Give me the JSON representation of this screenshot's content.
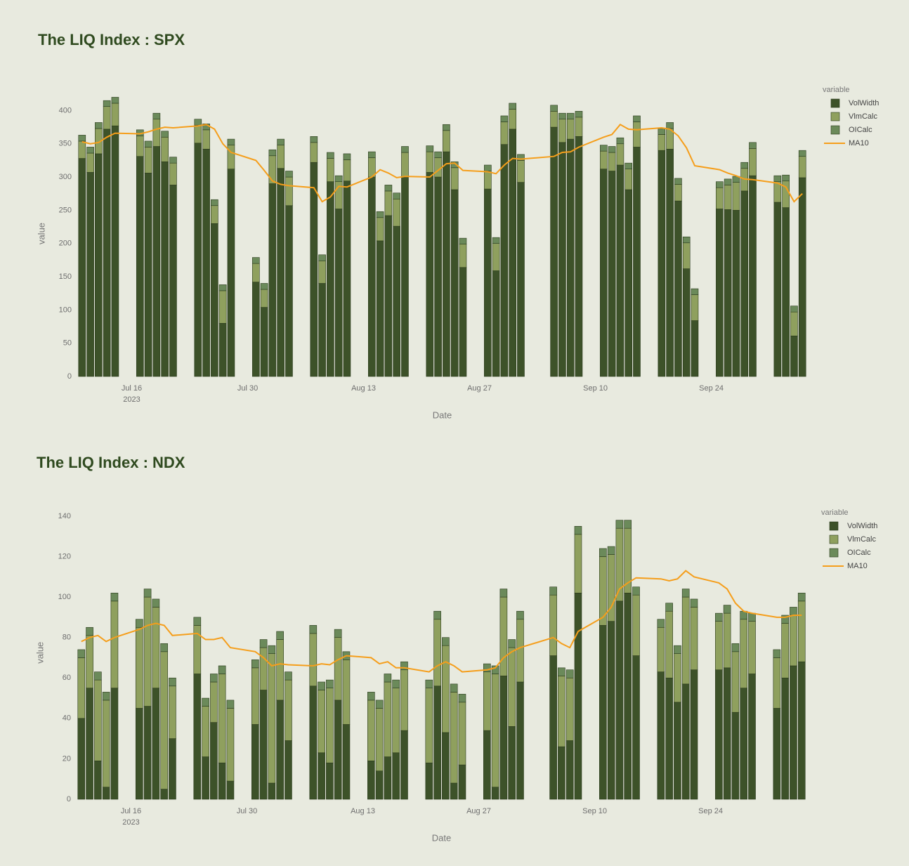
{
  "chart_data": [
    {
      "type": "bar",
      "barmode": "stack",
      "title": "The LIQ Index : SPX",
      "xlabel": "Date",
      "ylabel": "value",
      "legend_title": "variable",
      "x": [
        "2023-07-10",
        "2023-07-11",
        "2023-07-12",
        "2023-07-13",
        "2023-07-14",
        "2023-07-17",
        "2023-07-18",
        "2023-07-19",
        "2023-07-20",
        "2023-07-21",
        "2023-07-24",
        "2023-07-25",
        "2023-07-26",
        "2023-07-27",
        "2023-07-28",
        "2023-07-31",
        "2023-08-01",
        "2023-08-02",
        "2023-08-03",
        "2023-08-04",
        "2023-08-07",
        "2023-08-08",
        "2023-08-09",
        "2023-08-10",
        "2023-08-11",
        "2023-08-14",
        "2023-08-15",
        "2023-08-16",
        "2023-08-17",
        "2023-08-18",
        "2023-08-21",
        "2023-08-22",
        "2023-08-23",
        "2023-08-24",
        "2023-08-25",
        "2023-08-28",
        "2023-08-29",
        "2023-08-30",
        "2023-08-31",
        "2023-09-01",
        "2023-09-05",
        "2023-09-06",
        "2023-09-07",
        "2023-09-08",
        "2023-09-11",
        "2023-09-12",
        "2023-09-13",
        "2023-09-14",
        "2023-09-15",
        "2023-09-18",
        "2023-09-19",
        "2023-09-20",
        "2023-09-21",
        "2023-09-22",
        "2023-09-25",
        "2023-09-26",
        "2023-09-27",
        "2023-09-28",
        "2023-09-29",
        "2023-10-02",
        "2023-10-03",
        "2023-10-04",
        "2023-10-05"
      ],
      "series": [
        {
          "name": "VolWidth",
          "type": "bar",
          "color": "#3d5229",
          "values": [
            328,
            307,
            335,
            372,
            377,
            331,
            306,
            346,
            323,
            288,
            351,
            342,
            230,
            80,
            312,
            142,
            104,
            290,
            313,
            257,
            322,
            140,
            293,
            252,
            294,
            300,
            204,
            242,
            226,
            300,
            307,
            300,
            338,
            281,
            164,
            282,
            159,
            349,
            372,
            292,
            375,
            352,
            357,
            361,
            312,
            309,
            318,
            281,
            345,
            340,
            342,
            264,
            162,
            84,
            252,
            251,
            250,
            279,
            302,
            262,
            254,
            61,
            299
          ]
        },
        {
          "name": "VlmCalc",
          "type": "bar",
          "color": "#8fa05e",
          "values": [
            26,
            29,
            38,
            34,
            34,
            31,
            39,
            41,
            37,
            33,
            27,
            29,
            27,
            49,
            36,
            28,
            27,
            42,
            35,
            43,
            30,
            34,
            35,
            41,
            32,
            29,
            35,
            37,
            41,
            37,
            31,
            29,
            32,
            33,
            35,
            27,
            41,
            34,
            30,
            33,
            24,
            35,
            30,
            29,
            27,
            28,
            32,
            31,
            38,
            24,
            31,
            25,
            39,
            39,
            32,
            37,
            42,
            34,
            41,
            31,
            40,
            36,
            32
          ]
        },
        {
          "name": "OICalc",
          "type": "bar",
          "color": "#6b8a5a",
          "values": [
            9,
            9,
            9,
            9,
            9,
            9,
            9,
            9,
            9,
            9,
            9,
            9,
            9,
            9,
            9,
            9,
            9,
            9,
            9,
            9,
            9,
            9,
            9,
            9,
            9,
            9,
            9,
            9,
            9,
            9,
            9,
            9,
            9,
            9,
            9,
            9,
            9,
            9,
            9,
            9,
            9,
            9,
            9,
            9,
            9,
            9,
            9,
            9,
            9,
            9,
            9,
            9,
            9,
            9,
            9,
            9,
            9,
            9,
            9,
            9,
            9,
            9,
            9
          ]
        },
        {
          "name": "MA10",
          "type": "line",
          "color": "#f59e1b",
          "values": [
            353,
            350,
            352,
            360,
            366,
            365,
            368,
            372,
            375,
            374,
            377,
            379,
            372,
            350,
            337,
            325,
            310,
            294,
            289,
            287,
            284,
            263,
            270,
            286,
            285,
            300,
            311,
            306,
            299,
            301,
            300,
            310,
            320,
            321,
            310,
            308,
            305,
            318,
            328,
            327,
            331,
            337,
            338,
            345,
            360,
            364,
            379,
            372,
            371,
            374,
            372,
            362,
            344,
            317,
            311,
            306,
            302,
            297,
            296,
            291,
            285,
            263,
            275
          ]
        }
      ],
      "xlim": [
        "2023-07-09",
        "2023-10-06"
      ],
      "ylim": [
        0,
        430
      ],
      "xticks": [
        {
          "value": "2023-07-16",
          "label": "Jul 16",
          "sublabel": "2023"
        },
        {
          "value": "2023-07-30",
          "label": "Jul 30"
        },
        {
          "value": "2023-08-13",
          "label": "Aug 13"
        },
        {
          "value": "2023-08-27",
          "label": "Aug 27"
        },
        {
          "value": "2023-09-10",
          "label": "Sep 10"
        },
        {
          "value": "2023-09-24",
          "label": "Sep 24"
        }
      ],
      "yticks": [
        0,
        50,
        100,
        150,
        200,
        250,
        300,
        350,
        400
      ],
      "grid": false
    },
    {
      "type": "bar",
      "barmode": "stack",
      "title": "The LIQ Index : NDX",
      "xlabel": "Date",
      "ylabel": "value",
      "legend_title": "variable",
      "x": [
        "2023-07-10",
        "2023-07-11",
        "2023-07-12",
        "2023-07-13",
        "2023-07-14",
        "2023-07-17",
        "2023-07-18",
        "2023-07-19",
        "2023-07-20",
        "2023-07-21",
        "2023-07-24",
        "2023-07-25",
        "2023-07-26",
        "2023-07-27",
        "2023-07-28",
        "2023-07-31",
        "2023-08-01",
        "2023-08-02",
        "2023-08-03",
        "2023-08-04",
        "2023-08-07",
        "2023-08-08",
        "2023-08-09",
        "2023-08-10",
        "2023-08-11",
        "2023-08-14",
        "2023-08-15",
        "2023-08-16",
        "2023-08-17",
        "2023-08-18",
        "2023-08-21",
        "2023-08-22",
        "2023-08-23",
        "2023-08-24",
        "2023-08-25",
        "2023-08-28",
        "2023-08-29",
        "2023-08-30",
        "2023-08-31",
        "2023-09-01",
        "2023-09-05",
        "2023-09-06",
        "2023-09-07",
        "2023-09-08",
        "2023-09-11",
        "2023-09-12",
        "2023-09-13",
        "2023-09-14",
        "2023-09-15",
        "2023-09-18",
        "2023-09-19",
        "2023-09-20",
        "2023-09-21",
        "2023-09-22",
        "2023-09-25",
        "2023-09-26",
        "2023-09-27",
        "2023-09-28",
        "2023-09-29",
        "2023-10-02",
        "2023-10-03",
        "2023-10-04",
        "2023-10-05"
      ],
      "series": [
        {
          "name": "VolWidth",
          "type": "bar",
          "color": "#3d5229",
          "values": [
            40,
            55,
            19,
            6,
            55,
            45,
            46,
            55,
            5,
            30,
            62,
            21,
            38,
            18,
            9,
            37,
            54,
            8,
            49,
            29,
            56,
            23,
            18,
            49,
            37,
            19,
            14,
            21,
            23,
            34,
            18,
            56,
            33,
            8,
            17,
            34,
            6,
            61,
            36,
            58,
            71,
            26,
            29,
            102,
            86,
            88,
            98,
            102,
            71,
            63,
            60,
            48,
            57,
            64,
            64,
            65,
            43,
            55,
            62,
            45,
            60,
            66,
            68
          ]
        },
        {
          "name": "VlmCalc",
          "type": "bar",
          "color": "#8fa05e",
          "values": [
            30,
            26,
            40,
            43,
            43,
            40,
            54,
            40,
            68,
            26,
            24,
            25,
            20,
            44,
            36,
            28,
            21,
            64,
            30,
            30,
            26,
            31,
            37,
            31,
            32,
            30,
            31,
            37,
            32,
            30,
            37,
            33,
            43,
            45,
            31,
            29,
            56,
            39,
            39,
            31,
            30,
            35,
            31,
            29,
            34,
            33,
            36,
            32,
            30,
            22,
            33,
            24,
            43,
            31,
            24,
            27,
            30,
            34,
            26,
            25,
            27,
            25,
            30
          ]
        },
        {
          "name": "OICalc",
          "type": "bar",
          "color": "#6b8a5a",
          "values": [
            4,
            4,
            4,
            4,
            4,
            4,
            4,
            4,
            4,
            4,
            4,
            4,
            4,
            4,
            4,
            4,
            4,
            4,
            4,
            4,
            4,
            4,
            4,
            4,
            4,
            4,
            4,
            4,
            4,
            4,
            4,
            4,
            4,
            4,
            4,
            4,
            4,
            4,
            4,
            4,
            4,
            4,
            4,
            4,
            4,
            4,
            4,
            4,
            4,
            4,
            4,
            4,
            4,
            4,
            4,
            4,
            4,
            4,
            4,
            4,
            4,
            4,
            4
          ]
        },
        {
          "name": "MA10",
          "type": "line",
          "color": "#f59e1b",
          "values": [
            78,
            80,
            81,
            78,
            80,
            84,
            86,
            87,
            86,
            81,
            82,
            79,
            79,
            80,
            75,
            73,
            70,
            66,
            67,
            66.5,
            66,
            67,
            66.5,
            69,
            71,
            70,
            67,
            68,
            65,
            65,
            63,
            66,
            68,
            66,
            63,
            64,
            65,
            70,
            73,
            75,
            80,
            77,
            75,
            83,
            90,
            95,
            104,
            107,
            109.5,
            109,
            108,
            109,
            113,
            110,
            107,
            104,
            97,
            93,
            92,
            90,
            90,
            91,
            91
          ]
        }
      ],
      "xlim": [
        "2023-07-09",
        "2023-10-06"
      ],
      "ylim": [
        0,
        145
      ],
      "xticks": [
        {
          "value": "2023-07-16",
          "label": "Jul 16",
          "sublabel": "2023"
        },
        {
          "value": "2023-07-30",
          "label": "Jul 30"
        },
        {
          "value": "2023-08-13",
          "label": "Aug 13"
        },
        {
          "value": "2023-08-27",
          "label": "Aug 27"
        },
        {
          "value": "2023-09-10",
          "label": "Sep 10"
        },
        {
          "value": "2023-09-24",
          "label": "Sep 24"
        }
      ],
      "yticks": [
        0,
        20,
        40,
        60,
        80,
        100,
        120,
        140
      ],
      "grid": false
    }
  ]
}
